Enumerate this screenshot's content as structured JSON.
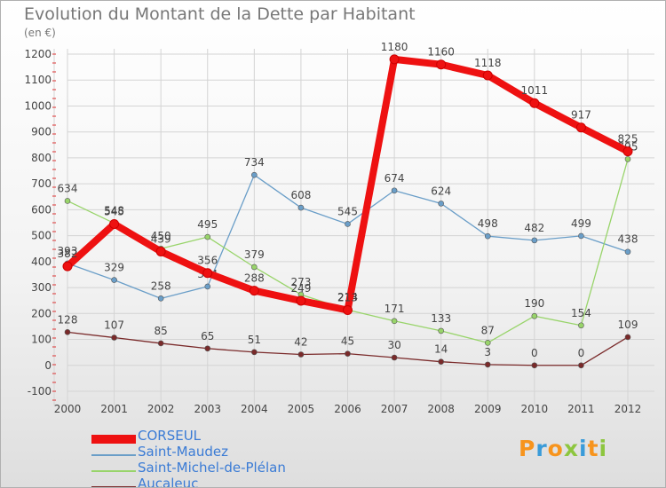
{
  "title": "Evolution du Montant de la Dette par Habitant",
  "subtitle": "(en €)",
  "logo": {
    "letters": [
      "P",
      "r",
      "o",
      "x",
      "i",
      "t",
      "i"
    ],
    "colors": [
      "#f7941d",
      "#3a9bd9",
      "#f7941d",
      "#8dc63f",
      "#3a9bd9",
      "#f7941d",
      "#8dc63f"
    ]
  },
  "chart_data": {
    "type": "line",
    "x": [
      "2000",
      "2001",
      "2002",
      "2003",
      "2004",
      "2005",
      "2006",
      "2007",
      "2008",
      "2009",
      "2010",
      "2011",
      "2012"
    ],
    "ylim": [
      -100,
      1200
    ],
    "yticks": [
      -100,
      0,
      100,
      200,
      300,
      400,
      500,
      600,
      700,
      800,
      900,
      1000,
      1100,
      1200
    ],
    "grid": true,
    "legend_position": "bottom-left",
    "series": [
      {
        "name": "Saint-Maudez",
        "color": "#6a9ec8",
        "values": [
          393,
          329,
          258,
          304,
          734,
          608,
          545,
          674,
          624,
          498,
          482,
          499,
          438
        ]
      },
      {
        "name": "Saint-Michel-de-Plélan",
        "color": "#98d46a",
        "values": [
          634,
          548,
          450,
          495,
          379,
          273,
          214,
          171,
          133,
          87,
          190,
          154,
          795
        ]
      },
      {
        "name": "Aucaleuc",
        "color": "#7a2a2a",
        "values": [
          128,
          107,
          85,
          65,
          51,
          42,
          45,
          30,
          14,
          3,
          0,
          0,
          109
        ]
      },
      {
        "name": "CORSEUL",
        "color": "#ee1111",
        "values": [
          382,
          545,
          439,
          356,
          288,
          249,
          213,
          1180,
          1160,
          1118,
          1011,
          917,
          825
        ]
      }
    ]
  }
}
